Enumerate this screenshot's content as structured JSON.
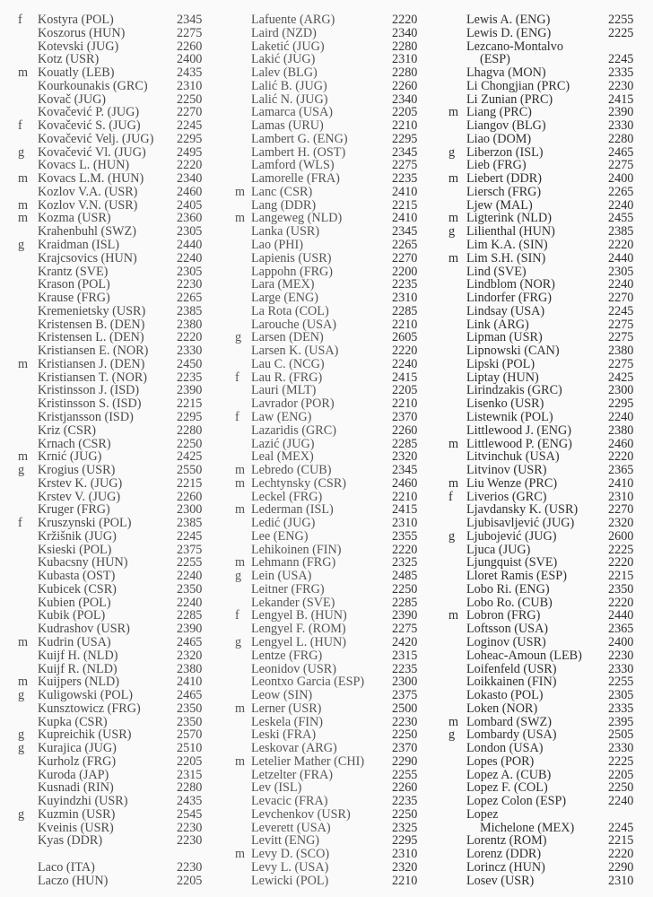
{
  "columns": [
    [
      {
        "t": "f",
        "n": "Kostyra (POL)",
        "r": "2345"
      },
      {
        "t": "",
        "n": "Koszorus (HUN)",
        "r": "2275"
      },
      {
        "t": "",
        "n": "Kotevski (JUG)",
        "r": "2260"
      },
      {
        "t": "",
        "n": "Kotz (USR)",
        "r": "2400"
      },
      {
        "t": "m",
        "n": "Kouatly (LEB)",
        "r": "2435"
      },
      {
        "t": "",
        "n": "Kourkounakis (GRC)",
        "r": "2310"
      },
      {
        "t": "",
        "n": "Kovač (JUG)",
        "r": "2250"
      },
      {
        "t": "",
        "n": "Kovačević P. (JUG)",
        "r": "2270"
      },
      {
        "t": "f",
        "n": "Kovačević S. (JUG)",
        "r": "2245"
      },
      {
        "t": "",
        "n": "Kovačević Velj. (JUG)",
        "r": "2295"
      },
      {
        "t": "g",
        "n": "Kovačević Vl. (JUG)",
        "r": "2495"
      },
      {
        "t": "",
        "n": "Kovacs L. (HUN)",
        "r": "2220"
      },
      {
        "t": "m",
        "n": "Kovacs L.M. (HUN)",
        "r": "2340"
      },
      {
        "t": "",
        "n": "Kozlov V.A. (USR)",
        "r": "2460"
      },
      {
        "t": "m",
        "n": "Kozlov V.N. (USR)",
        "r": "2405"
      },
      {
        "t": "m",
        "n": "Kozma (USR)",
        "r": "2360"
      },
      {
        "t": "",
        "n": "Krahenbuhl (SWZ)",
        "r": "2305"
      },
      {
        "t": "g",
        "n": "Kraidman (ISL)",
        "r": "2440"
      },
      {
        "t": "",
        "n": "Krajcsovics (HUN)",
        "r": "2240"
      },
      {
        "t": "",
        "n": "Krantz (SVE)",
        "r": "2305"
      },
      {
        "t": "",
        "n": "Krason (POL)",
        "r": "2230"
      },
      {
        "t": "",
        "n": "Krause (FRG)",
        "r": "2265"
      },
      {
        "t": "",
        "n": "Kremenietsky (USR)",
        "r": "2385"
      },
      {
        "t": "",
        "n": "Kristensen B. (DEN)",
        "r": "2380"
      },
      {
        "t": "",
        "n": "Kristensen L. (DEN)",
        "r": "2220"
      },
      {
        "t": "",
        "n": "Kristiansen E. (NOR)",
        "r": "2330"
      },
      {
        "t": "m",
        "n": "Kristiansen J. (DEN)",
        "r": "2450"
      },
      {
        "t": "",
        "n": "Kristiansen T. (NOR)",
        "r": "2235"
      },
      {
        "t": "",
        "n": "Kristinsson J. (ISD)",
        "r": "2390"
      },
      {
        "t": "",
        "n": "Kristinsson S. (ISD)",
        "r": "2215"
      },
      {
        "t": "",
        "n": "Kristjansson (ISD)",
        "r": "2295"
      },
      {
        "t": "",
        "n": "Kriz (CSR)",
        "r": "2280"
      },
      {
        "t": "",
        "n": "Krnach (CSR)",
        "r": "2250"
      },
      {
        "t": "m",
        "n": "Krnić (JUG)",
        "r": "2425"
      },
      {
        "t": "g",
        "n": "Krogius (USR)",
        "r": "2550"
      },
      {
        "t": "",
        "n": "Krstev K. (JUG)",
        "r": "2215"
      },
      {
        "t": "",
        "n": "Krstev V. (JUG)",
        "r": "2260"
      },
      {
        "t": "",
        "n": "Kruger (FRG)",
        "r": "2300"
      },
      {
        "t": "f",
        "n": "Kruszynski (POL)",
        "r": "2385"
      },
      {
        "t": "",
        "n": "Kržišnik (JUG)",
        "r": "2245"
      },
      {
        "t": "",
        "n": "Ksieski (POL)",
        "r": "2375"
      },
      {
        "t": "",
        "n": "Kubacsny (HUN)",
        "r": "2255"
      },
      {
        "t": "",
        "n": "Kubasta (OST)",
        "r": "2240"
      },
      {
        "t": "",
        "n": "Kubicek (CSR)",
        "r": "2350"
      },
      {
        "t": "",
        "n": "Kubien (POL)",
        "r": "2240"
      },
      {
        "t": "",
        "n": "Kubik (POL)",
        "r": "2285"
      },
      {
        "t": "",
        "n": "Kudrashov (USR)",
        "r": "2390"
      },
      {
        "t": "m",
        "n": "Kudrin (USA)",
        "r": "2465"
      },
      {
        "t": "",
        "n": "Kuijf H. (NLD)",
        "r": "2320"
      },
      {
        "t": "",
        "n": "Kuijf R. (NLD)",
        "r": "2380"
      },
      {
        "t": "m",
        "n": "Kuijpers (NLD)",
        "r": "2410"
      },
      {
        "t": "g",
        "n": "Kuligowski (POL)",
        "r": "2465"
      },
      {
        "t": "",
        "n": "Kunsztowicz (FRG)",
        "r": "2350"
      },
      {
        "t": "",
        "n": "Kupka (CSR)",
        "r": "2350"
      },
      {
        "t": "g",
        "n": "Kupreichik (USR)",
        "r": "2570"
      },
      {
        "t": "g",
        "n": "Kurajica (JUG)",
        "r": "2510"
      },
      {
        "t": "",
        "n": "Kurholz (FRG)",
        "r": "2205"
      },
      {
        "t": "",
        "n": "Kuroda (JAP)",
        "r": "2315"
      },
      {
        "t": "",
        "n": "Kusnadi (RIN)",
        "r": "2280"
      },
      {
        "t": "",
        "n": "Kuyindzhi (USR)",
        "r": "2435"
      },
      {
        "t": "g",
        "n": "Kuzmin (USR)",
        "r": "2545"
      },
      {
        "t": "",
        "n": "Kveinis (USR)",
        "r": "2230"
      },
      {
        "t": "",
        "n": "Kyas (DDR)",
        "r": "2230"
      },
      {
        "t": "",
        "n": "",
        "r": ""
      },
      {
        "t": "",
        "n": "Laco (ITA)",
        "r": "2230"
      },
      {
        "t": "",
        "n": "Laczo (HUN)",
        "r": "2205"
      }
    ],
    [
      {
        "t": "",
        "n": "Lafuente (ARG)",
        "r": "2220"
      },
      {
        "t": "",
        "n": "Laird (NZD)",
        "r": "2340"
      },
      {
        "t": "",
        "n": "Laketić (JUG)",
        "r": "2280"
      },
      {
        "t": "",
        "n": "Lakić (JUG)",
        "r": "2310"
      },
      {
        "t": "",
        "n": "Lalev (BLG)",
        "r": "2280"
      },
      {
        "t": "",
        "n": "Lalić B. (JUG)",
        "r": "2260"
      },
      {
        "t": "",
        "n": "Lalić N. (JUG)",
        "r": "2340"
      },
      {
        "t": "",
        "n": "Lamarca (USA)",
        "r": "2205"
      },
      {
        "t": "",
        "n": "Lamas (URU)",
        "r": "2210"
      },
      {
        "t": "",
        "n": "Lambert G. (ENG)",
        "r": "2295"
      },
      {
        "t": "",
        "n": "Lambert H. (OST)",
        "r": "2345"
      },
      {
        "t": "",
        "n": "Lamford (WLS)",
        "r": "2275"
      },
      {
        "t": "",
        "n": "Lamorelle (FRA)",
        "r": "2235"
      },
      {
        "t": "m",
        "n": "Lanc (CSR)",
        "r": "2410"
      },
      {
        "t": "",
        "n": "Lang (DDR)",
        "r": "2215"
      },
      {
        "t": "m",
        "n": "Langeweg (NLD)",
        "r": "2410"
      },
      {
        "t": "",
        "n": "Lanka (USR)",
        "r": "2345"
      },
      {
        "t": "",
        "n": "Lao (PHI)",
        "r": "2265"
      },
      {
        "t": "",
        "n": "Lapienis (USR)",
        "r": "2270"
      },
      {
        "t": "",
        "n": "Lappohn (FRG)",
        "r": "2200"
      },
      {
        "t": "",
        "n": "Lara (MEX)",
        "r": "2235"
      },
      {
        "t": "",
        "n": "Large (ENG)",
        "r": "2310"
      },
      {
        "t": "",
        "n": "La Rota (COL)",
        "r": "2285"
      },
      {
        "t": "",
        "n": "Larouche (USA)",
        "r": "2210"
      },
      {
        "t": "g",
        "n": "Larsen (DEN)",
        "r": "2605"
      },
      {
        "t": "",
        "n": "Larsen K. (USA)",
        "r": "2220"
      },
      {
        "t": "",
        "n": "Lau C. (NCG)",
        "r": "2240"
      },
      {
        "t": "f",
        "n": "Lau R. (FRG)",
        "r": "2415"
      },
      {
        "t": "",
        "n": "Lauri (MLT)",
        "r": "2205"
      },
      {
        "t": "",
        "n": "Lavrador (POR)",
        "r": "2210"
      },
      {
        "t": "f",
        "n": "Law (ENG)",
        "r": "2370"
      },
      {
        "t": "",
        "n": "Lazaridis (GRC)",
        "r": "2260"
      },
      {
        "t": "",
        "n": "Lazić (JUG)",
        "r": "2285"
      },
      {
        "t": "",
        "n": "Leal (MEX)",
        "r": "2320"
      },
      {
        "t": "m",
        "n": "Lebredo (CUB)",
        "r": "2345"
      },
      {
        "t": "m",
        "n": "Lechtynsky (CSR)",
        "r": "2460"
      },
      {
        "t": "",
        "n": "Leckel (FRG)",
        "r": "2210"
      },
      {
        "t": "m",
        "n": "Lederman (ISL)",
        "r": "2415"
      },
      {
        "t": "",
        "n": "Ledić (JUG)",
        "r": "2310"
      },
      {
        "t": "",
        "n": "Lee (ENG)",
        "r": "2355"
      },
      {
        "t": "",
        "n": "Lehikoinen (FIN)",
        "r": "2220"
      },
      {
        "t": "m",
        "n": "Lehmann (FRG)",
        "r": "2325"
      },
      {
        "t": "g",
        "n": "Lein (USA)",
        "r": "2485"
      },
      {
        "t": "",
        "n": "Leitner (FRG)",
        "r": "2250"
      },
      {
        "t": "",
        "n": "Lekander (SVE)",
        "r": "2285"
      },
      {
        "t": "f",
        "n": "Lengyel B. (HUN)",
        "r": "2390"
      },
      {
        "t": "",
        "n": "Lengyel F. (ROM)",
        "r": "2275"
      },
      {
        "t": "g",
        "n": "Lengyel L. (HUN)",
        "r": "2420"
      },
      {
        "t": "",
        "n": "Lentze (FRG)",
        "r": "2315"
      },
      {
        "t": "",
        "n": "Leonidov (USR)",
        "r": "2235"
      },
      {
        "t": "",
        "n": "Leontxo Garcia (ESP)",
        "r": "2300"
      },
      {
        "t": "",
        "n": "Leow (SIN)",
        "r": "2375"
      },
      {
        "t": "m",
        "n": "Lerner (USR)",
        "r": "2500"
      },
      {
        "t": "",
        "n": "Leskela (FIN)",
        "r": "2230"
      },
      {
        "t": "",
        "n": "Leski (FRA)",
        "r": "2250"
      },
      {
        "t": "",
        "n": "Leskovar (ARG)",
        "r": "2370"
      },
      {
        "t": "m",
        "n": "Letelier Mather (CHI)",
        "r": "2290"
      },
      {
        "t": "",
        "n": "Letzelter (FRA)",
        "r": "2255"
      },
      {
        "t": "",
        "n": "Lev (ISL)",
        "r": "2260"
      },
      {
        "t": "",
        "n": "Levacic (FRA)",
        "r": "2235"
      },
      {
        "t": "",
        "n": "Levchenkov (USR)",
        "r": "2250"
      },
      {
        "t": "",
        "n": "Leverett (USA)",
        "r": "2325"
      },
      {
        "t": "",
        "n": "Levitt (ENG)",
        "r": "2295"
      },
      {
        "t": "m",
        "n": "Levy D. (SCO)",
        "r": "2310"
      },
      {
        "t": "",
        "n": "Levy L. (USA)",
        "r": "2320"
      },
      {
        "t": "",
        "n": "Lewicki (POL)",
        "r": "2210"
      }
    ],
    [
      {
        "t": "",
        "n": "Lewis A. (ENG)",
        "r": "2255"
      },
      {
        "t": "",
        "n": "Lewis D. (ENG)",
        "r": "2225"
      },
      {
        "t": "",
        "n": "Lezcano-Montalvo",
        "r": ""
      },
      {
        "t": "",
        "n": "(ESP)",
        "r": "2245",
        "indent": true
      },
      {
        "t": "",
        "n": "Lhagva (MON)",
        "r": "2335"
      },
      {
        "t": "",
        "n": "Li Chongjian (PRC)",
        "r": "2230"
      },
      {
        "t": "",
        "n": "Li Zunian (PRC)",
        "r": "2415"
      },
      {
        "t": "m",
        "n": "Liang (PRC)",
        "r": "2390"
      },
      {
        "t": "",
        "n": "Liangov (BLG)",
        "r": "2330"
      },
      {
        "t": "",
        "n": "Liao (DOM)",
        "r": "2280"
      },
      {
        "t": "g",
        "n": "Liberzon (ISL)",
        "r": "2465"
      },
      {
        "t": "",
        "n": "Lieb (FRG)",
        "r": "2275"
      },
      {
        "t": "m",
        "n": "Liebert (DDR)",
        "r": "2400"
      },
      {
        "t": "",
        "n": "Liersch (FRG)",
        "r": "2265"
      },
      {
        "t": "",
        "n": "Ljew (MAL)",
        "r": "2240"
      },
      {
        "t": "m",
        "n": "Ligterink (NLD)",
        "r": "2455"
      },
      {
        "t": "g",
        "n": "Lilienthal (HUN)",
        "r": "2385"
      },
      {
        "t": "",
        "n": "Lim K.A. (SIN)",
        "r": "2220"
      },
      {
        "t": "m",
        "n": "Lim S.H. (SIN)",
        "r": "2440"
      },
      {
        "t": "",
        "n": "Lind (SVE)",
        "r": "2305"
      },
      {
        "t": "",
        "n": "Lindblom (NOR)",
        "r": "2240"
      },
      {
        "t": "",
        "n": "Lindorfer (FRG)",
        "r": "2270"
      },
      {
        "t": "",
        "n": "Lindsay (USA)",
        "r": "2245"
      },
      {
        "t": "",
        "n": "Link (ARG)",
        "r": "2275"
      },
      {
        "t": "",
        "n": "Lipman (USR)",
        "r": "2275"
      },
      {
        "t": "",
        "n": "Lipnowski (CAN)",
        "r": "2380"
      },
      {
        "t": "",
        "n": "Lipski (POL)",
        "r": "2275"
      },
      {
        "t": "",
        "n": "Liptay (HUN)",
        "r": "2425"
      },
      {
        "t": "",
        "n": "Lirindzakis (GRC)",
        "r": "2300"
      },
      {
        "t": "",
        "n": "Lisenko (USR)",
        "r": "2295"
      },
      {
        "t": "",
        "n": "Listewnik (POL)",
        "r": "2240"
      },
      {
        "t": "",
        "n": "Littlewood J. (ENG)",
        "r": "2380"
      },
      {
        "t": "m",
        "n": "Littlewood P. (ENG)",
        "r": "2460"
      },
      {
        "t": "",
        "n": "Litvinchuk (USA)",
        "r": "2220"
      },
      {
        "t": "",
        "n": "Litvinov (USR)",
        "r": "2365"
      },
      {
        "t": "m",
        "n": "Liu Wenze (PRC)",
        "r": "2410"
      },
      {
        "t": "f",
        "n": "Liverios (GRC)",
        "r": "2310"
      },
      {
        "t": "",
        "n": "Ljavdansky K. (USR)",
        "r": "2270"
      },
      {
        "t": "",
        "n": "Ljubisavljević (JUG)",
        "r": "2320"
      },
      {
        "t": "g",
        "n": "Ljubojević (JUG)",
        "r": "2600"
      },
      {
        "t": "",
        "n": "Ljuca (JUG)",
        "r": "2225"
      },
      {
        "t": "",
        "n": "Ljungquist (SVE)",
        "r": "2220"
      },
      {
        "t": "",
        "n": "Lloret Ramis (ESP)",
        "r": "2215"
      },
      {
        "t": "",
        "n": "Lobo Ri. (ENG)",
        "r": "2350"
      },
      {
        "t": "",
        "n": "Lobo Ro. (CUB)",
        "r": "2220"
      },
      {
        "t": "m",
        "n": "Lobron (FRG)",
        "r": "2440"
      },
      {
        "t": "",
        "n": "Loftsson (USA)",
        "r": "2365"
      },
      {
        "t": "",
        "n": "Loginov (USR)",
        "r": "2400"
      },
      {
        "t": "",
        "n": "Loheac-Amoun (LEB)",
        "r": "2230"
      },
      {
        "t": "",
        "n": "Loifenfeld (USR)",
        "r": "2330"
      },
      {
        "t": "",
        "n": "Loikkainen (FIN)",
        "r": "2255"
      },
      {
        "t": "",
        "n": "Lokasto (POL)",
        "r": "2305"
      },
      {
        "t": "",
        "n": "Loken (NOR)",
        "r": "2335"
      },
      {
        "t": "m",
        "n": "Lombard (SWZ)",
        "r": "2395"
      },
      {
        "t": "g",
        "n": "Lombardy (USA)",
        "r": "2505"
      },
      {
        "t": "",
        "n": "London (USA)",
        "r": "2330"
      },
      {
        "t": "",
        "n": "Lopes (POR)",
        "r": "2225"
      },
      {
        "t": "",
        "n": "Lopez A. (CUB)",
        "r": "2205"
      },
      {
        "t": "",
        "n": "Lopez F. (COL)",
        "r": "2250"
      },
      {
        "t": "",
        "n": "Lopez Colon (ESP)",
        "r": "2240"
      },
      {
        "t": "",
        "n": "Lopez",
        "r": ""
      },
      {
        "t": "",
        "n": "Michelone (MEX)",
        "r": "2245",
        "indent": true
      },
      {
        "t": "",
        "n": "Lorentz (ROM)",
        "r": "2215"
      },
      {
        "t": "",
        "n": "Lorenz (DDR)",
        "r": "2220"
      },
      {
        "t": "",
        "n": "Lorincz (HUN)",
        "r": "2290"
      },
      {
        "t": "",
        "n": "Losev (USR)",
        "r": "2310"
      }
    ]
  ]
}
